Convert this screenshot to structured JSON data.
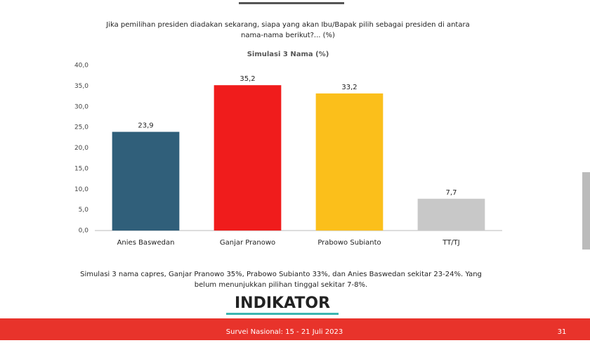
{
  "slide": {
    "question_lines": [
      "Jika pemilihan presiden diadakan sekarang, siapa yang akan Ibu/Bapak pilih sebagai presiden di antara",
      "nama-nama berikut?... (%)"
    ],
    "note_lines": [
      "Simulasi 3 nama capres, Ganjar Pranowo 35%, Prabowo Subianto 33%, dan Anies Baswedan sekitar 23-24%. Yang",
      "belum menunjukkan pilihan tinggal sekitar 7-8%."
    ],
    "logo": "INDIKATOR",
    "footer": "Survei Nasional: 15 - 21 Juli 2023",
    "page_number": "31"
  },
  "chart_data": {
    "type": "bar",
    "title": "Simulasi 3 Nama (%)",
    "categories": [
      "Anies Baswedan",
      "Ganjar Pranowo",
      "Prabowo Subianto",
      "TT/TJ"
    ],
    "values": [
      23.9,
      35.2,
      33.2,
      7.7
    ],
    "value_labels": [
      "23,9",
      "35,2",
      "33,2",
      "7,7"
    ],
    "colors": [
      "#305f7a",
      "#f01c1c",
      "#fbbf1b",
      "#c8c8c8"
    ],
    "ylim": [
      0,
      40
    ],
    "yticks": [
      {
        "value": 0,
        "label": "0,0"
      },
      {
        "value": 5,
        "label": "5,0"
      },
      {
        "value": 10,
        "label": "10,0"
      },
      {
        "value": 15,
        "label": "15,0"
      },
      {
        "value": 20,
        "label": "20,0"
      },
      {
        "value": 25,
        "label": "25,0"
      },
      {
        "value": 30,
        "label": "30,0"
      },
      {
        "value": 35,
        "label": "35,0"
      },
      {
        "value": 40,
        "label": "40,0"
      }
    ],
    "grid": false
  }
}
